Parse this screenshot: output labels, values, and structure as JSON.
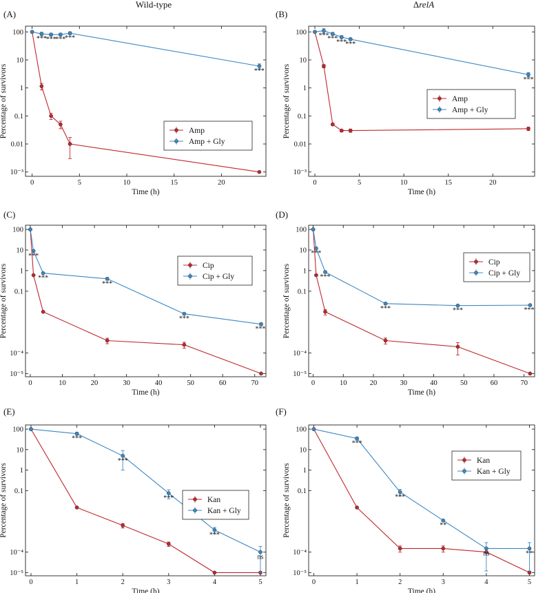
{
  "figure": {
    "column_titles": {
      "left": "Wild-type",
      "right_prefix": "Δ",
      "right_italic": "relA"
    },
    "colors": {
      "control": "#c0262d",
      "glycine": "#3a87c4",
      "axis": "#222222"
    }
  },
  "chart_data": [
    {
      "panel": "(A)",
      "type": "line",
      "yscale": "log",
      "xlabel": "Time (h)",
      "ylabel": "Percentage of survivors",
      "xlim": [
        -0.7,
        24.7
      ],
      "xticks": [
        0,
        5,
        10,
        15,
        20
      ],
      "ylim": [
        0.0007,
        160
      ],
      "yticks": [
        100,
        10,
        1,
        0.1,
        0.01,
        0.001
      ],
      "ytick_labels": [
        "100",
        "10",
        "1",
        "0.1",
        "0.01",
        "10⁻³"
      ],
      "legend": {
        "position": "right-middle"
      },
      "series": [
        {
          "name": "Amp",
          "role": "control",
          "x": [
            0,
            1,
            2,
            3,
            4,
            24
          ],
          "y": [
            100,
            1.15,
            0.1,
            0.05,
            0.01,
            0.001
          ],
          "err": [
            0,
            0.3,
            0.025,
            0.015,
            0.007,
            0
          ]
        },
        {
          "name": "Amp + Gly",
          "role": "glycine",
          "x": [
            0,
            1,
            2,
            3,
            4,
            24
          ],
          "y": [
            100,
            85,
            80,
            80,
            90,
            6
          ],
          "err": [
            0,
            12,
            10,
            10,
            10,
            1.2
          ]
        }
      ],
      "annotations": [
        {
          "x": 1,
          "y": 85,
          "text": "***"
        },
        {
          "x": 2,
          "y": 80,
          "text": "***"
        },
        {
          "x": 3,
          "y": 80,
          "text": "***"
        },
        {
          "x": 4,
          "y": 90,
          "text": "***"
        },
        {
          "x": 24,
          "y": 6,
          "text": "***"
        }
      ]
    },
    {
      "panel": "(B)",
      "type": "line",
      "yscale": "log",
      "xlabel": "Time (h)",
      "ylabel": "Percentage of survivors",
      "xlim": [
        -0.7,
        24.7
      ],
      "xticks": [
        0,
        5,
        10,
        15,
        20
      ],
      "ylim": [
        0.0007,
        160
      ],
      "yticks": [
        100,
        10,
        1,
        0.1,
        0.01,
        0.001
      ],
      "ytick_labels": [
        "100",
        "10",
        "1",
        "0.1",
        "0.01",
        "10⁻³"
      ],
      "legend": {
        "position": "right-middle"
      },
      "series": [
        {
          "name": "Amp",
          "role": "control",
          "x": [
            0,
            1,
            2,
            3,
            4,
            24
          ],
          "y": [
            100,
            6,
            0.05,
            0.03,
            0.03,
            0.035
          ],
          "err": [
            0,
            0.8,
            0.005,
            0.003,
            0.004,
            0.005
          ]
        },
        {
          "name": "Amp + Gly",
          "role": "glycine",
          "x": [
            0,
            1,
            2,
            3,
            4,
            24
          ],
          "y": [
            100,
            110,
            85,
            65,
            55,
            3
          ],
          "err": [
            0,
            20,
            10,
            8,
            6,
            0.5
          ]
        }
      ],
      "annotations": [
        {
          "x": 1,
          "y": 110,
          "text": "***"
        },
        {
          "x": 2,
          "y": 85,
          "text": "***"
        },
        {
          "x": 3,
          "y": 65,
          "text": "***"
        },
        {
          "x": 4,
          "y": 55,
          "text": "***"
        },
        {
          "x": 24,
          "y": 3,
          "text": "***"
        }
      ]
    },
    {
      "panel": "(C)",
      "type": "line",
      "yscale": "log",
      "xlabel": "Time (h)",
      "ylabel": "Percentage of survivors",
      "xlim": [
        -1.5,
        73.5
      ],
      "xticks": [
        0,
        10,
        20,
        30,
        40,
        50,
        60,
        70
      ],
      "ylim": [
        7e-06,
        160
      ],
      "yticks": [
        100,
        10,
        1,
        0.1,
        0.0001,
        1e-05
      ],
      "ytick_labels": [
        "100",
        "10",
        "1",
        "0.1",
        "10⁻⁴",
        "10⁻⁵"
      ],
      "legend": {
        "position": "right-upper"
      },
      "series": [
        {
          "name": "Cip",
          "role": "control",
          "x": [
            0,
            1,
            4,
            24,
            48,
            72
          ],
          "y": [
            100,
            0.6,
            0.01,
            0.0004,
            0.00025,
            1e-05
          ],
          "err": [
            0,
            0,
            0,
            0.00012,
            8e-05,
            0
          ]
        },
        {
          "name": "Cip + Gly",
          "role": "glycine",
          "x": [
            0,
            1,
            4,
            24,
            48,
            72
          ],
          "y": [
            100,
            9,
            0.75,
            0.4,
            0.008,
            0.0025
          ],
          "err": [
            0,
            0,
            0,
            0.06,
            0,
            0.0004
          ]
        }
      ],
      "annotations": [
        {
          "x": 1,
          "y": 9,
          "text": "***"
        },
        {
          "x": 4,
          "y": 0.75,
          "text": "***"
        },
        {
          "x": 24,
          "y": 0.4,
          "text": "***"
        },
        {
          "x": 48,
          "y": 0.008,
          "text": "***"
        },
        {
          "x": 72,
          "y": 0.0025,
          "text": "***"
        }
      ]
    },
    {
      "panel": "(D)",
      "type": "line",
      "yscale": "log",
      "xlabel": "Time (h)",
      "ylabel": "Percentage of survivors",
      "xlim": [
        -1.5,
        73.5
      ],
      "xticks": [
        0,
        10,
        20,
        30,
        40,
        50,
        60,
        70
      ],
      "ylim": [
        7e-06,
        160
      ],
      "yticks": [
        100,
        10,
        1,
        0.1,
        0.0001,
        1e-05
      ],
      "ytick_labels": [
        "100",
        "10",
        "1",
        "0.1",
        "10⁻⁴",
        "10⁻⁵"
      ],
      "legend": {
        "position": "right-upper"
      },
      "series": [
        {
          "name": "Cip",
          "role": "control",
          "x": [
            0,
            1,
            4,
            24,
            48,
            72
          ],
          "y": [
            100,
            0.6,
            0.01,
            0.0004,
            0.0002,
            1e-05
          ],
          "err": [
            0,
            0,
            0.003,
            0.00013,
            0.00012,
            0
          ]
        },
        {
          "name": "Cip + Gly",
          "role": "glycine",
          "x": [
            0,
            1,
            4,
            24,
            48,
            72
          ],
          "y": [
            100,
            12,
            0.85,
            0.025,
            0.02,
            0.021
          ],
          "err": [
            0,
            0,
            0.1,
            0.003,
            0.002,
            0.002
          ]
        }
      ],
      "annotations": [
        {
          "x": 1,
          "y": 12,
          "text": "***"
        },
        {
          "x": 4,
          "y": 0.85,
          "text": "***"
        },
        {
          "x": 24,
          "y": 0.025,
          "text": "***"
        },
        {
          "x": 48,
          "y": 0.02,
          "text": "***"
        },
        {
          "x": 72,
          "y": 0.021,
          "text": "***"
        }
      ]
    },
    {
      "panel": "(E)",
      "type": "line",
      "yscale": "log",
      "xlabel": "Time (h)",
      "ylabel": "Percentage of survivors",
      "xlim": [
        -0.12,
        5.12
      ],
      "xticks": [
        0,
        1,
        2,
        3,
        4,
        5
      ],
      "ylim": [
        7e-06,
        160
      ],
      "yticks": [
        100,
        10,
        1,
        0.1,
        0.0001,
        1e-05
      ],
      "ytick_labels": [
        "100",
        "10",
        "1",
        "0.1",
        "10⁻⁴",
        "10⁻⁵"
      ],
      "legend": {
        "position": "right-middle"
      },
      "series": [
        {
          "name": "Kan",
          "role": "control",
          "x": [
            0,
            1,
            2,
            3,
            4,
            5
          ],
          "y": [
            100,
            0.015,
            0.002,
            0.00025,
            1e-05,
            1e-05
          ],
          "err": [
            0,
            0,
            0.0005,
            6e-05,
            0,
            0
          ]
        },
        {
          "name": "Kan + Gly",
          "role": "glycine",
          "x": [
            0,
            1,
            2,
            3,
            4,
            5
          ],
          "y": [
            100,
            60,
            5,
            0.075,
            0.0012,
            0.0001
          ],
          "err": [
            0,
            10,
            4,
            0.035,
            0.0004,
            9e-05
          ]
        }
      ],
      "annotations": [
        {
          "x": 1,
          "y": 60,
          "text": "***"
        },
        {
          "x": 2,
          "y": 5,
          "text": "***"
        },
        {
          "x": 3,
          "y": 0.075,
          "text": "***"
        },
        {
          "x": 4,
          "y": 0.0012,
          "text": "***"
        },
        {
          "x": 5,
          "y": 0.0001,
          "text": "ns"
        }
      ]
    },
    {
      "panel": "(F)",
      "type": "line",
      "yscale": "log",
      "xlabel": "Time (h)",
      "ylabel": "Percentage of survivors",
      "xlim": [
        -0.12,
        5.12
      ],
      "xticks": [
        0,
        1,
        2,
        3,
        4,
        5
      ],
      "ylim": [
        7e-06,
        160
      ],
      "yticks": [
        100,
        10,
        1,
        0.1,
        0.0001,
        1e-05
      ],
      "ytick_labels": [
        "100",
        "10",
        "1",
        "0.1",
        "10⁻⁴",
        "10⁻⁵"
      ],
      "legend": {
        "position": "right-upper"
      },
      "series": [
        {
          "name": "Kan",
          "role": "control",
          "x": [
            0,
            1,
            2,
            3,
            4,
            5
          ],
          "y": [
            100,
            0.015,
            0.00015,
            0.00015,
            0.0001,
            1e-05
          ],
          "err": [
            0,
            0,
            5e-05,
            5e-05,
            0,
            0
          ]
        },
        {
          "name": "Kan + Gly",
          "role": "glycine",
          "x": [
            0,
            1,
            2,
            3,
            4,
            5
          ],
          "y": [
            100,
            35,
            0.085,
            0.0035,
            0.00015,
            0.00015
          ],
          "err": [
            0,
            6,
            0.03,
            0,
            0.00014,
            0.00014
          ]
        }
      ],
      "annotations": [
        {
          "x": 1,
          "y": 35,
          "text": "***"
        },
        {
          "x": 2,
          "y": 0.085,
          "text": "***"
        },
        {
          "x": 3,
          "y": 0.0035,
          "text": "**"
        },
        {
          "x": 4,
          "y": 0.00015,
          "text": "ns"
        },
        {
          "x": 5,
          "y": 0.00015,
          "text": "**"
        }
      ]
    }
  ]
}
